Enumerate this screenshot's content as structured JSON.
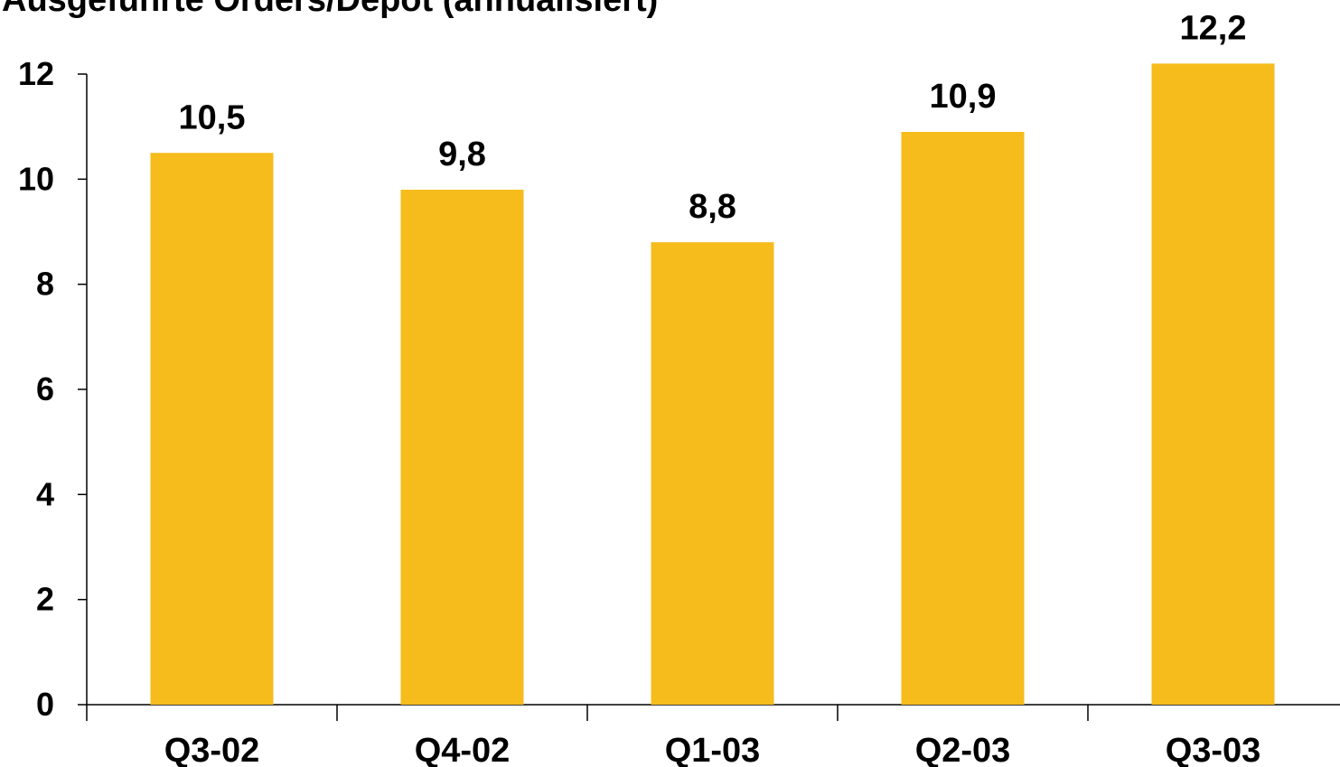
{
  "chart_data": {
    "type": "bar",
    "title": "Ausgeführte Orders/Depot (annualisiert)",
    "categories": [
      "Q3-02",
      "Q4-02",
      "Q1-03",
      "Q2-03",
      "Q3-03"
    ],
    "values": [
      10.5,
      9.8,
      8.8,
      10.9,
      12.2
    ],
    "value_labels": [
      "10,5",
      "9,8",
      "8,8",
      "10,9",
      "12,2"
    ],
    "yticks": [
      "0",
      "2",
      "4",
      "6",
      "8",
      "10",
      "12"
    ],
    "ylim": [
      0,
      12
    ],
    "grid": false,
    "legend": "none",
    "bar_color": "#F5BC1C",
    "axis_color": "#000000"
  }
}
